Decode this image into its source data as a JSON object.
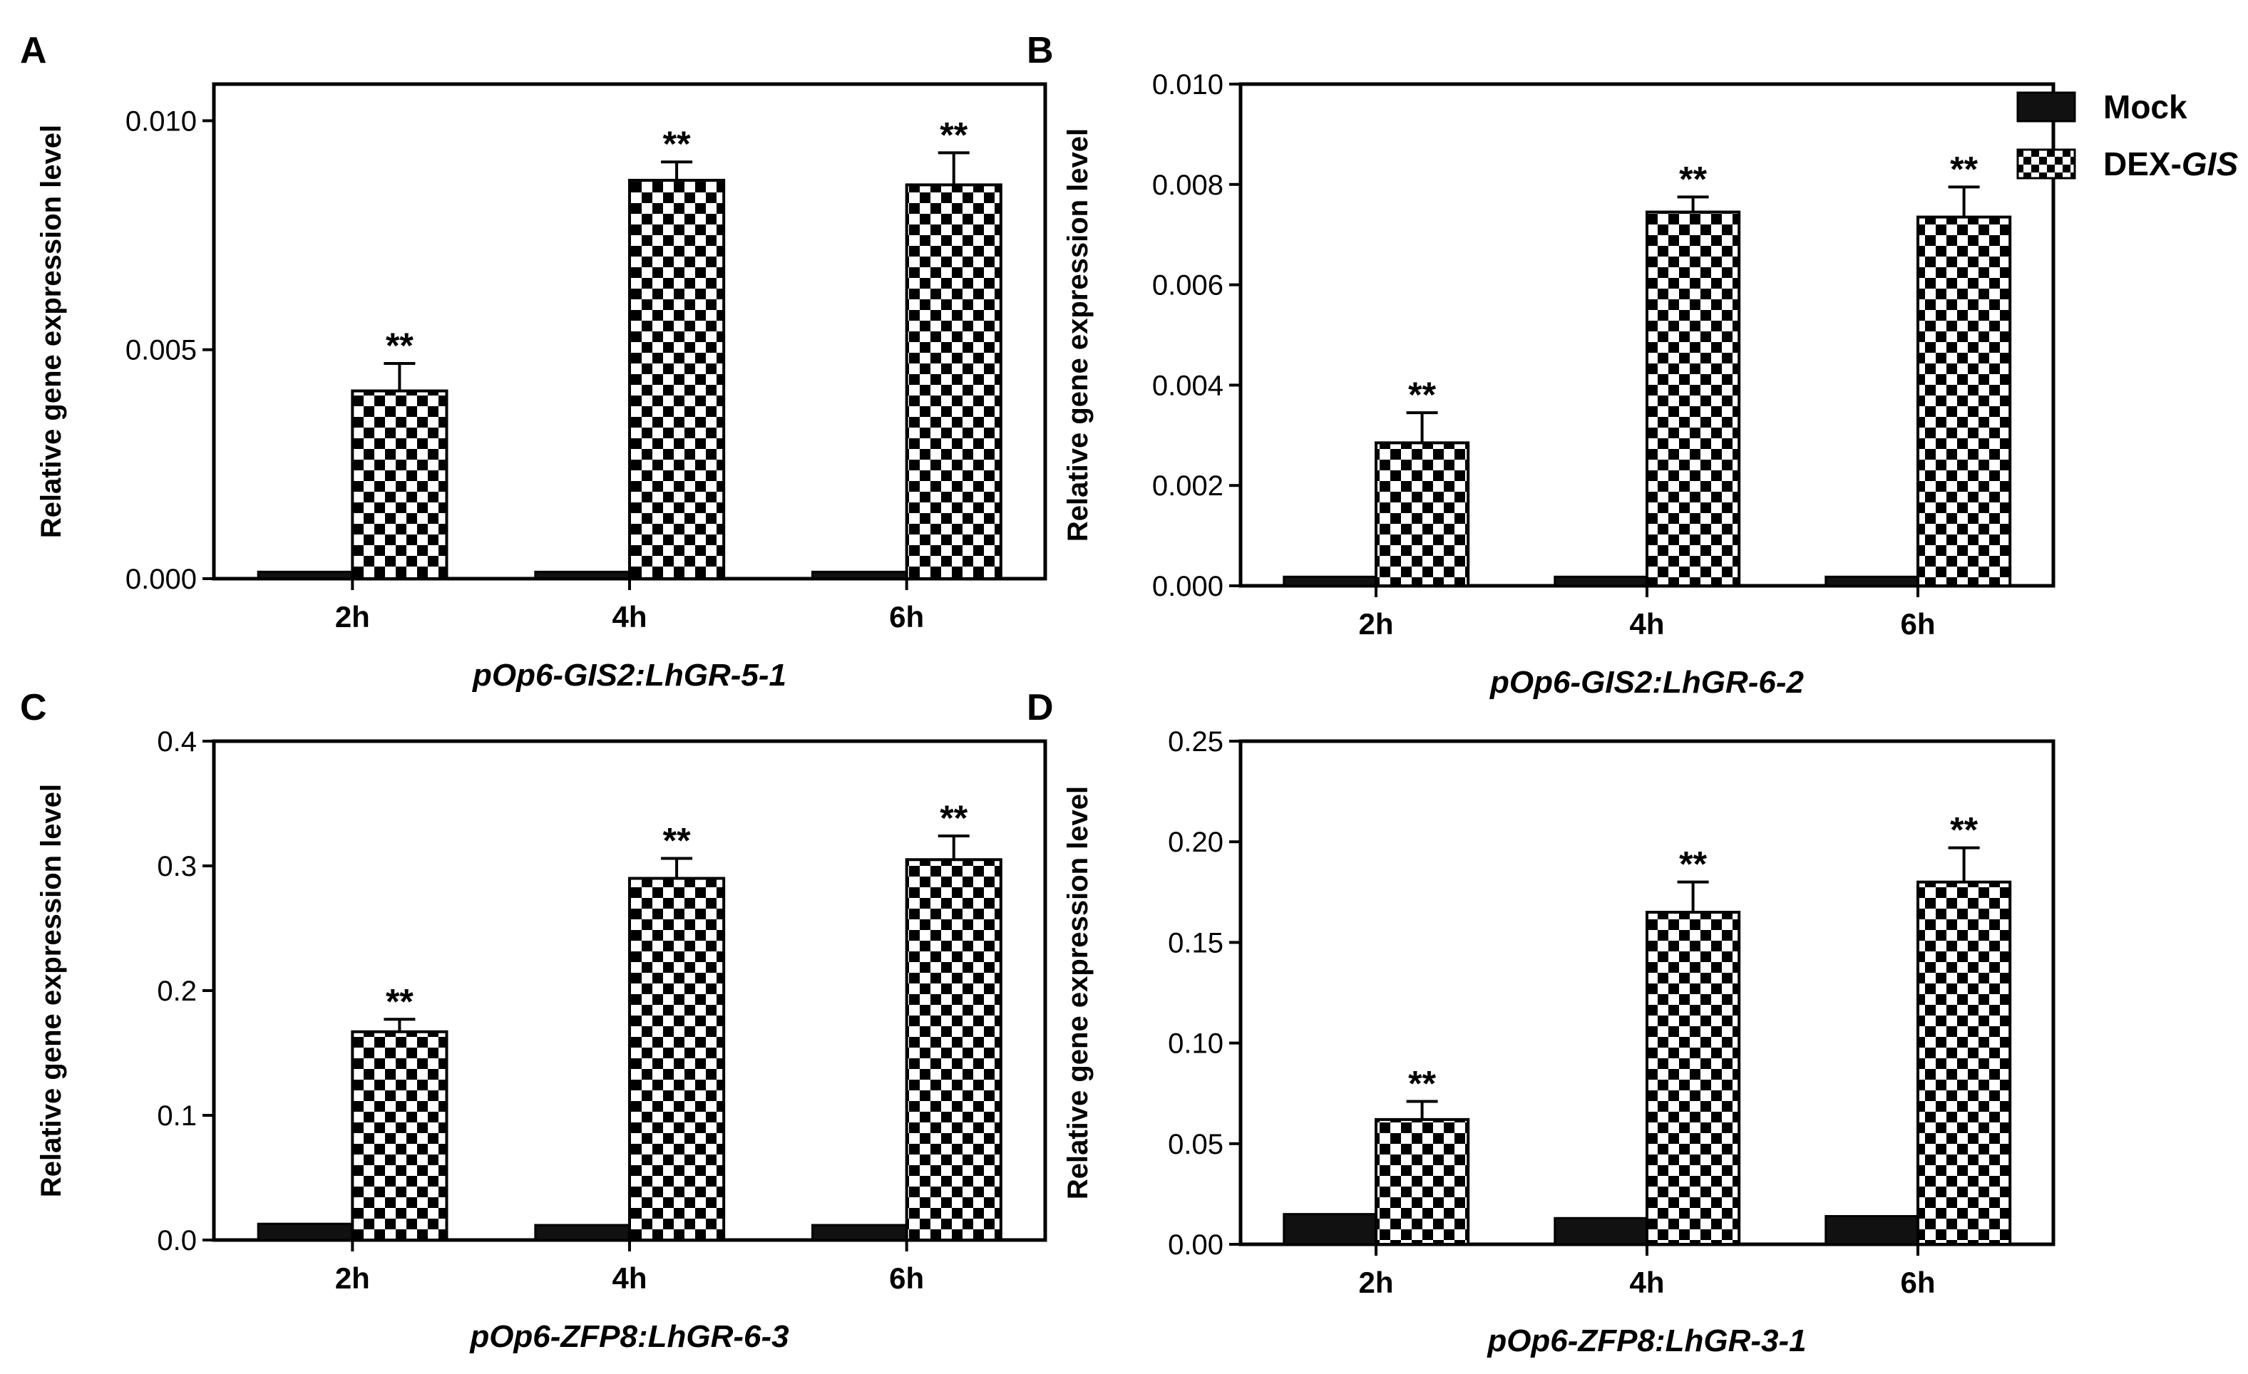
{
  "legend": {
    "position": "top-right",
    "items": [
      {
        "label": "Mock",
        "italic_suffix": "",
        "pattern": "solid"
      },
      {
        "label": "DEX-",
        "italic_suffix": "GIS",
        "pattern": "checker"
      }
    ]
  },
  "chart_data": [
    {
      "panel_label": "A",
      "type": "bar",
      "title": "pOp6-GIS2:LhGR-5-1",
      "xlabel": "pOp6-GIS2:LhGR-5-1",
      "ylabel": "Relative gene expression level",
      "categories": [
        "2h",
        "4h",
        "6h"
      ],
      "ylim": [
        0,
        0.0108
      ],
      "yticks": [
        0,
        0.005,
        0.01
      ],
      "ytick_labels": [
        "0.000",
        "0.005",
        "0.010"
      ],
      "series": [
        {
          "name": "Mock",
          "values": [
            0.00015,
            0.00015,
            0.00015
          ],
          "errors": [
            0,
            0,
            0
          ]
        },
        {
          "name": "DEX-GIS",
          "values": [
            0.0041,
            0.0087,
            0.0086
          ],
          "errors": [
            0.0006,
            0.0004,
            0.0007
          ]
        }
      ],
      "significance": [
        "**",
        "**",
        "**"
      ]
    },
    {
      "panel_label": "B",
      "type": "bar",
      "title": "pOp6-GIS2:LhGR-6-2",
      "xlabel": "pOp6-GIS2:LhGR-6-2",
      "ylabel": "Relative gene expression level",
      "categories": [
        "2h",
        "4h",
        "6h"
      ],
      "ylim": [
        0,
        0.01
      ],
      "yticks": [
        0,
        0.002,
        0.004,
        0.006,
        0.008,
        0.01
      ],
      "ytick_labels": [
        "0.000",
        "0.002",
        "0.004",
        "0.006",
        "0.008",
        "0.010"
      ],
      "series": [
        {
          "name": "Mock",
          "values": [
            0.00018,
            0.00018,
            0.00018
          ],
          "errors": [
            0,
            0,
            0
          ]
        },
        {
          "name": "DEX-GIS",
          "values": [
            0.00285,
            0.00745,
            0.00735
          ],
          "errors": [
            0.0006,
            0.0003,
            0.0006
          ]
        }
      ],
      "significance": [
        "**",
        "**",
        "**"
      ]
    },
    {
      "panel_label": "C",
      "type": "bar",
      "title": "pOp6-ZFP8:LhGR-6-3",
      "xlabel": "pOp6-ZFP8:LhGR-6-3",
      "ylabel": "Relative gene expression level",
      "categories": [
        "2h",
        "4h",
        "6h"
      ],
      "ylim": [
        0,
        0.4
      ],
      "yticks": [
        0,
        0.1,
        0.2,
        0.3,
        0.4
      ],
      "ytick_labels": [
        "0.0",
        "0.1",
        "0.2",
        "0.3",
        "0.4"
      ],
      "series": [
        {
          "name": "Mock",
          "values": [
            0.013,
            0.012,
            0.012
          ],
          "errors": [
            0,
            0,
            0
          ]
        },
        {
          "name": "DEX-GIS",
          "values": [
            0.167,
            0.29,
            0.305
          ],
          "errors": [
            0.01,
            0.016,
            0.019
          ]
        }
      ],
      "significance": [
        "**",
        "**",
        "**"
      ]
    },
    {
      "panel_label": "D",
      "type": "bar",
      "title": "pOp6-ZFP8:LhGR-3-1",
      "xlabel": "pOp6-ZFP8:LhGR-3-1",
      "ylabel": "Relative gene expression level",
      "categories": [
        "2h",
        "4h",
        "6h"
      ],
      "ylim": [
        0,
        0.25
      ],
      "yticks": [
        0,
        0.05,
        0.1,
        0.15,
        0.2,
        0.25
      ],
      "ytick_labels": [
        "0.00",
        "0.05",
        "0.10",
        "0.15",
        "0.20",
        "0.25"
      ],
      "series": [
        {
          "name": "Mock",
          "values": [
            0.015,
            0.013,
            0.014
          ],
          "errors": [
            0,
            0,
            0
          ]
        },
        {
          "name": "DEX-GIS",
          "values": [
            0.062,
            0.165,
            0.18
          ],
          "errors": [
            0.009,
            0.015,
            0.017
          ]
        }
      ],
      "significance": [
        "**",
        "**",
        "**"
      ]
    }
  ]
}
